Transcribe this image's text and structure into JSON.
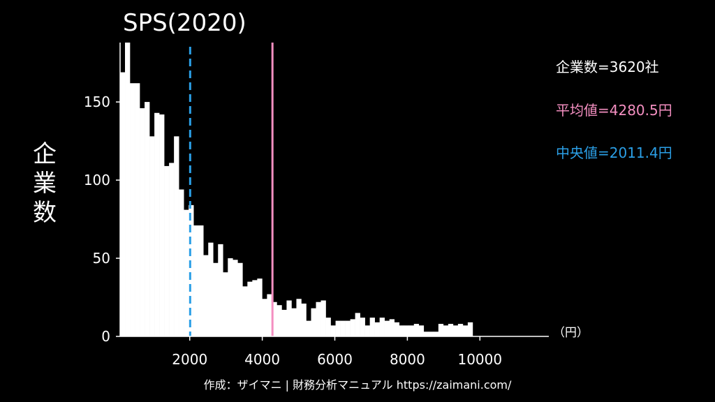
{
  "chart_data": {
    "type": "bar",
    "title": "SPS(2020)",
    "ylabel": "企業数",
    "x_unit": "（円）",
    "xlim": [
      80,
      11900
    ],
    "ylim": [
      0,
      188
    ],
    "bin_start": 80,
    "bin_width": 135,
    "xticks": [
      2000,
      4000,
      6000,
      8000,
      10000
    ],
    "xtick_labels": [
      "2000",
      "4000",
      "6000",
      "8000",
      "10000"
    ],
    "yticks": [
      0,
      50,
      100,
      150
    ],
    "ytick_labels": [
      "0",
      "50",
      "100",
      "150"
    ],
    "values": [
      169,
      188,
      162,
      162,
      146,
      150,
      128,
      143,
      142,
      109,
      111,
      128,
      94,
      81,
      84,
      71,
      71,
      52,
      60,
      47,
      59,
      41,
      50,
      49,
      47,
      32,
      35,
      36,
      37,
      24,
      27,
      22,
      20,
      17,
      23,
      18,
      24,
      21,
      10,
      18,
      22,
      23,
      12,
      7,
      10,
      10,
      10,
      11,
      15,
      12,
      7,
      12,
      9,
      12,
      10,
      11,
      9,
      7,
      7,
      7,
      8,
      7,
      3,
      3,
      3,
      8,
      7,
      8,
      7,
      8,
      7,
      9
    ],
    "mean": {
      "value": 4280.5,
      "label": "平均値=4280.5円",
      "color": "#f48fc1"
    },
    "median": {
      "value": 2011.4,
      "label": "中央値=2011.4円",
      "color": "#2b9fe6"
    },
    "count_label": "企業数=3620社",
    "bar_color": "#ffffff"
  },
  "footer": "作成：ザイマニ | 財務分析マニュアル https://zaimani.com/"
}
